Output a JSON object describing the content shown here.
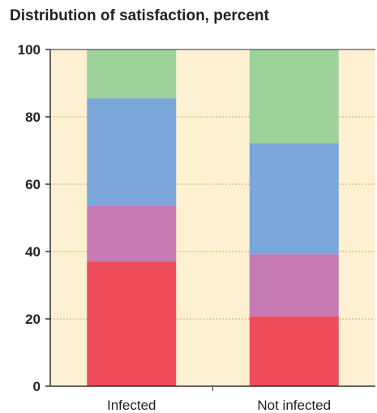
{
  "chart_data": {
    "type": "bar",
    "stacked": true,
    "title": "Distribution of satisfaction, percent",
    "xlabel": "",
    "ylabel": "",
    "categories": [
      "Infected",
      "Not infected"
    ],
    "ylim": [
      0,
      100
    ],
    "yticks": [
      "0",
      "20",
      "40",
      "60",
      "80",
      "100"
    ],
    "grid": "horizontal dotted",
    "legend": "none",
    "series": [
      {
        "color": "#ee4c58",
        "values": [
          37.0,
          20.7
        ]
      },
      {
        "color": "#c57ab2",
        "values": [
          16.5,
          18.5
        ]
      },
      {
        "color": "#7ba6da",
        "values": [
          32.0,
          33.0
        ]
      },
      {
        "color": "#9dd39b",
        "values": [
          14.5,
          27.8
        ]
      }
    ],
    "plot_background": "#fdf1d2",
    "grid_color": "#e2a24a"
  }
}
